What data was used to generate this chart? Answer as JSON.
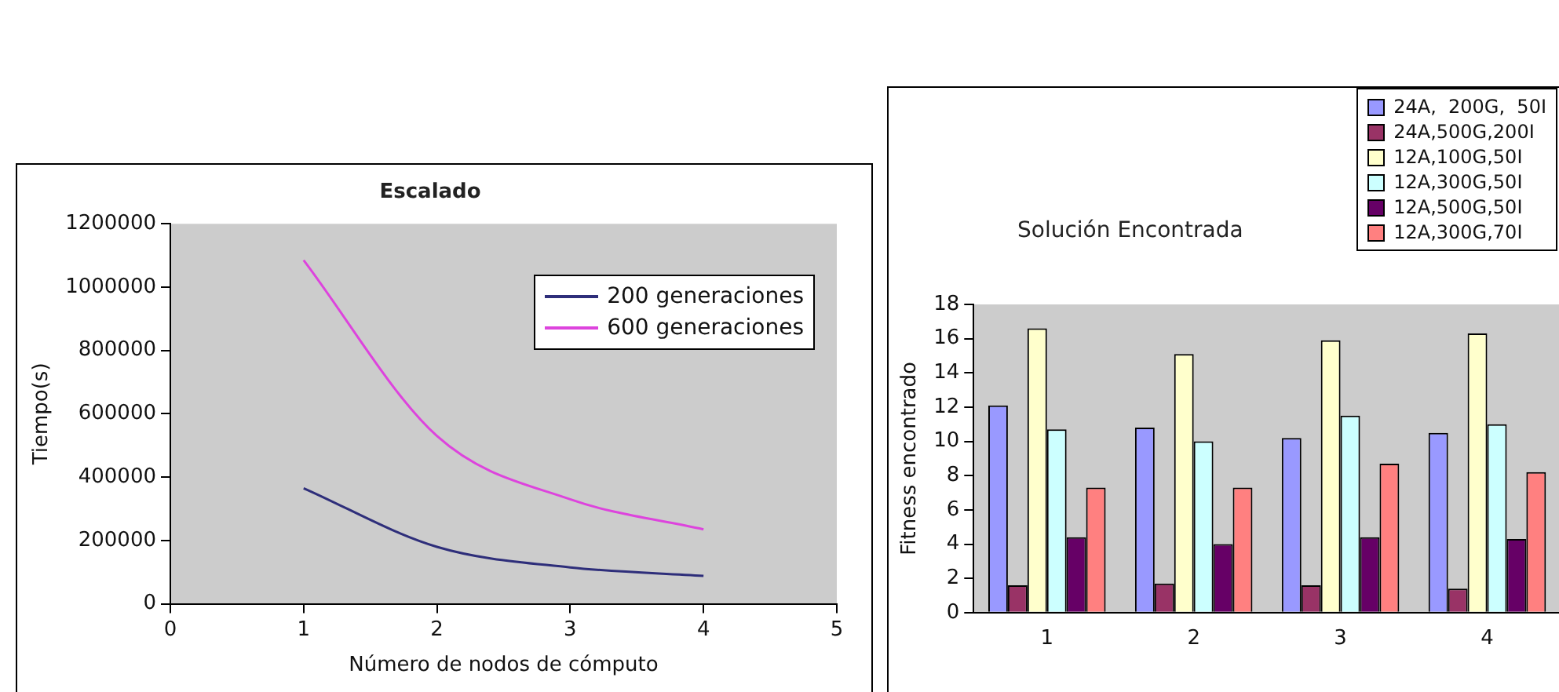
{
  "chart_data": [
    {
      "type": "line",
      "title": "Escalado",
      "xlabel": "Número de nodos de cómputo",
      "ylabel": "Tiempo(s)",
      "x": [
        1,
        2,
        3,
        4
      ],
      "series": [
        {
          "name": "200 generaciones",
          "color": "#2e2e7a",
          "values": [
            365000,
            180000,
            115000,
            88000
          ]
        },
        {
          "name": "600 generaciones",
          "color": "#dd44dd",
          "values": [
            1085000,
            530000,
            330000,
            235000
          ]
        }
      ],
      "xlim": [
        0,
        5
      ],
      "xticks": [
        0,
        1,
        2,
        3,
        4,
        5
      ],
      "ylim": [
        0,
        1200000
      ],
      "yticks": [
        0,
        200000,
        400000,
        600000,
        800000,
        1000000,
        1200000
      ],
      "legend": "top right",
      "grid": false,
      "marker": "none"
    },
    {
      "type": "bar",
      "title": "Solución Encontrada",
      "ylabel": "Fitness encontrado",
      "categories": [
        "1",
        "2",
        "3",
        "4"
      ],
      "series": [
        {
          "name": "24A,  200G,  50I",
          "color": "#9999ff",
          "values": [
            12.1,
            10.8,
            10.2,
            10.5
          ]
        },
        {
          "name": "24A,500G,200I",
          "color": "#993366",
          "values": [
            1.6,
            1.7,
            1.6,
            1.4
          ]
        },
        {
          "name": "12A,100G,50I",
          "color": "#ffffcc",
          "values": [
            16.6,
            15.1,
            15.9,
            16.3
          ]
        },
        {
          "name": "12A,300G,50I",
          "color": "#ccffff",
          "values": [
            10.7,
            10.0,
            11.5,
            11.0
          ]
        },
        {
          "name": "12A,500G,50I",
          "color": "#660066",
          "values": [
            4.4,
            4.0,
            4.4,
            4.3
          ]
        },
        {
          "name": "12A,300G,70I",
          "color": "#ff8080",
          "values": [
            7.3,
            7.3,
            8.7,
            8.2
          ]
        }
      ],
      "ylim": [
        0,
        18
      ],
      "yticks": [
        0,
        2,
        4,
        6,
        8,
        10,
        12,
        14,
        16,
        18
      ],
      "legend": "top right",
      "grid": false
    }
  ]
}
